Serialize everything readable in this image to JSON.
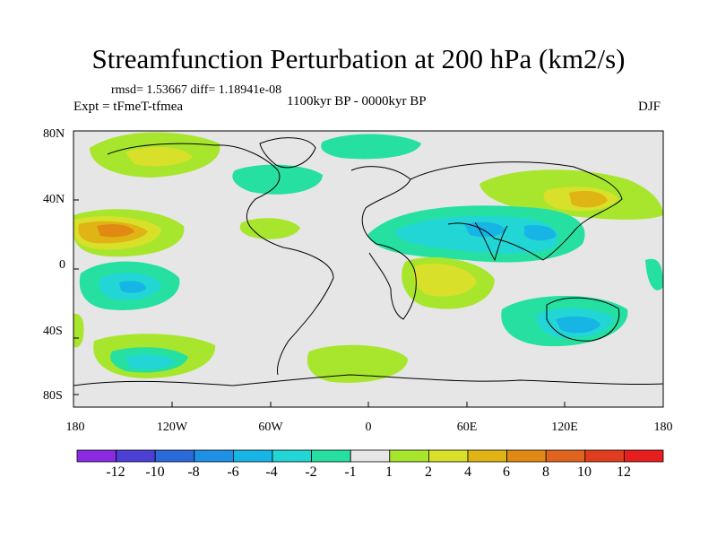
{
  "figure": {
    "title": "Streamfunction Perturbation at 200 hPa (km2/s)",
    "stats": "rmsd= 1.53667 diff= 1.18941e-08",
    "experiment": "Expt = tFmeT-tfmea",
    "period": "1100kyr BP - 0000kyr BP",
    "season": "DJF"
  },
  "axes": {
    "y_ticks": [
      "80N",
      "40N",
      "0",
      "40S",
      "80S"
    ],
    "x_ticks": [
      "180",
      "120W",
      "60W",
      "0",
      "60E",
      "120E",
      "180"
    ]
  },
  "colorbar": {
    "labels": [
      "-12",
      "-10",
      "-8",
      "-6",
      "-4",
      "-2",
      "-1",
      "1",
      "2",
      "4",
      "6",
      "8",
      "10",
      "12"
    ],
    "colors": [
      "#8a2be2",
      "#4b3fd6",
      "#2a6ad9",
      "#1e90e6",
      "#17b4e6",
      "#22d6d6",
      "#25e0a0",
      "#e6e6e6",
      "#a8e62e",
      "#d8e02a",
      "#e0b414",
      "#e08a14",
      "#e0641e",
      "#e03c1e",
      "#e61e1e"
    ]
  },
  "palette": {
    "neutral": "#e6e6e6",
    "pos1": "#a8e62e",
    "pos2": "#d8e02a",
    "pos3": "#e0b414",
    "pos4": "#e08a14",
    "neg1": "#25e0a0",
    "neg2": "#22d6d6",
    "neg3": "#17b4e6"
  }
}
